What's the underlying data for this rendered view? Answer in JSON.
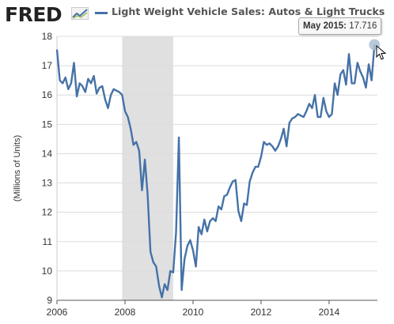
{
  "header": {
    "logo_text": "FRED",
    "logo_icon": "fred-chart-icon",
    "title": "Light Weight Vehicle Sales: Autos & Light Trucks"
  },
  "tooltip": {
    "date": "May 2015:",
    "value": "17.716"
  },
  "colors": {
    "series": "#4572a7",
    "recession": "#e0e0e0",
    "grid": "#dcdcdc",
    "tick_text": "#333333"
  },
  "chart_data": {
    "type": "line",
    "title": "Light Weight Vehicle Sales: Autos & Light Trucks",
    "xlabel": "",
    "ylabel": "(Millions of Units)",
    "xlim": [
      2006.0,
      2015.42
    ],
    "ylim": [
      9,
      18
    ],
    "x_ticks": [
      "2006",
      "2008",
      "2010",
      "2012",
      "2014"
    ],
    "y_ticks": [
      "9",
      "10",
      "11",
      "12",
      "13",
      "14",
      "15",
      "16",
      "17",
      "18"
    ],
    "grid": "horizontal",
    "recessions": [
      {
        "start": "2007-12",
        "end": "2009-06"
      }
    ],
    "series": [
      {
        "name": "Light Weight Vehicle Sales: Autos & Light Trucks",
        "x": [
          "2006-01",
          "2006-02",
          "2006-03",
          "2006-04",
          "2006-05",
          "2006-06",
          "2006-07",
          "2006-08",
          "2006-09",
          "2006-10",
          "2006-11",
          "2006-12",
          "2007-01",
          "2007-02",
          "2007-03",
          "2007-04",
          "2007-05",
          "2007-06",
          "2007-07",
          "2007-08",
          "2007-09",
          "2007-10",
          "2007-11",
          "2007-12",
          "2008-01",
          "2008-02",
          "2008-03",
          "2008-04",
          "2008-05",
          "2008-06",
          "2008-07",
          "2008-08",
          "2008-09",
          "2008-10",
          "2008-11",
          "2008-12",
          "2009-01",
          "2009-02",
          "2009-03",
          "2009-04",
          "2009-05",
          "2009-06",
          "2009-07",
          "2009-08",
          "2009-09",
          "2009-10",
          "2009-11",
          "2009-12",
          "2010-01",
          "2010-02",
          "2010-03",
          "2010-04",
          "2010-05",
          "2010-06",
          "2010-07",
          "2010-08",
          "2010-09",
          "2010-10",
          "2010-11",
          "2010-12",
          "2011-01",
          "2011-02",
          "2011-03",
          "2011-04",
          "2011-05",
          "2011-06",
          "2011-07",
          "2011-08",
          "2011-09",
          "2011-10",
          "2011-11",
          "2011-12",
          "2012-01",
          "2012-02",
          "2012-03",
          "2012-04",
          "2012-05",
          "2012-06",
          "2012-07",
          "2012-08",
          "2012-09",
          "2012-10",
          "2012-11",
          "2012-12",
          "2013-01",
          "2013-02",
          "2013-03",
          "2013-04",
          "2013-05",
          "2013-06",
          "2013-07",
          "2013-08",
          "2013-09",
          "2013-10",
          "2013-11",
          "2013-12",
          "2014-01",
          "2014-02",
          "2014-03",
          "2014-04",
          "2014-05",
          "2014-06",
          "2014-07",
          "2014-08",
          "2014-09",
          "2014-10",
          "2014-11",
          "2014-12",
          "2015-01",
          "2015-02",
          "2015-03",
          "2015-04",
          "2015-05"
        ],
        "values": [
          17.55,
          16.5,
          16.4,
          16.6,
          16.2,
          16.4,
          17.1,
          15.95,
          16.4,
          16.3,
          16.1,
          16.55,
          16.4,
          16.65,
          16.05,
          16.25,
          16.3,
          15.85,
          15.55,
          16.0,
          16.2,
          16.15,
          16.1,
          16.0,
          15.45,
          15.25,
          14.85,
          14.3,
          14.4,
          14.1,
          12.75,
          13.8,
          12.6,
          10.65,
          10.3,
          10.15,
          9.5,
          9.1,
          9.55,
          9.35,
          10.0,
          9.95,
          11.3,
          14.55,
          9.35,
          10.4,
          10.85,
          11.05,
          10.7,
          10.15,
          11.5,
          11.25,
          11.75,
          11.35,
          11.7,
          11.8,
          11.7,
          12.2,
          12.1,
          12.55,
          12.6,
          12.85,
          13.05,
          13.1,
          12.05,
          11.7,
          12.3,
          12.25,
          13.05,
          13.35,
          13.55,
          13.55,
          13.9,
          14.4,
          14.3,
          14.35,
          14.25,
          14.1,
          14.25,
          14.5,
          14.85,
          14.25,
          15.05,
          15.2,
          15.25,
          15.35,
          15.3,
          15.25,
          15.45,
          15.7,
          15.55,
          16.0,
          15.25,
          15.25,
          15.9,
          15.45,
          15.25,
          15.35,
          16.4,
          16.0,
          16.7,
          16.85,
          16.35,
          17.4,
          16.4,
          16.4,
          17.1,
          16.8,
          16.6,
          16.25,
          17.05,
          16.5,
          17.716
        ]
      }
    ]
  }
}
